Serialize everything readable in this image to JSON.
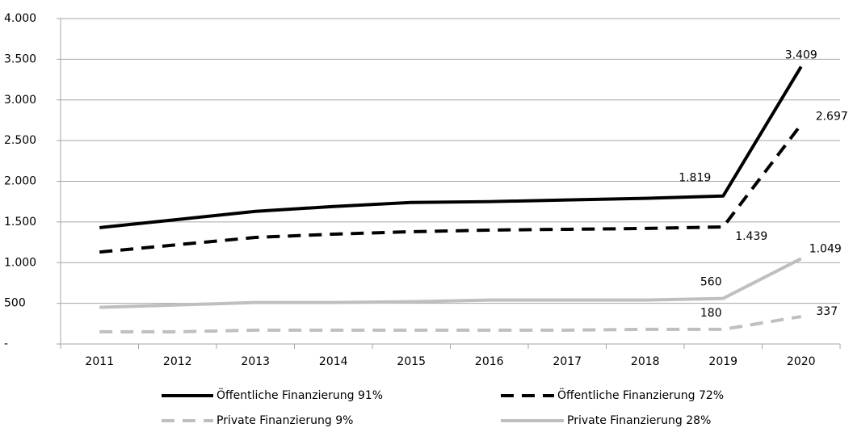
{
  "chart_data": {
    "type": "line",
    "categories": [
      "2011",
      "2012",
      "2013",
      "2014",
      "2015",
      "2016",
      "2017",
      "2018",
      "2019",
      "2020"
    ],
    "series": [
      {
        "name": "Öffentliche Finanzierung 91%",
        "color": "#000000",
        "dash": false,
        "values": [
          1430,
          1530,
          1630,
          1690,
          1740,
          1750,
          1770,
          1790,
          1819,
          3409
        ],
        "value_labels": [
          null,
          null,
          null,
          null,
          null,
          null,
          null,
          null,
          "1.819",
          "3.409"
        ]
      },
      {
        "name": "Öffentliche Finanzierung 72%",
        "color": "#000000",
        "dash": true,
        "values": [
          1130,
          1220,
          1310,
          1350,
          1380,
          1400,
          1410,
          1420,
          1439,
          2697
        ],
        "value_labels": [
          null,
          null,
          null,
          null,
          null,
          null,
          null,
          null,
          "1.439",
          "2.697"
        ]
      },
      {
        "name": "Private Finanzierung 9%",
        "color": "#bfbfbf",
        "dash": true,
        "values": [
          150,
          150,
          170,
          170,
          170,
          170,
          170,
          180,
          180,
          337
        ],
        "value_labels": [
          null,
          null,
          null,
          null,
          null,
          null,
          null,
          null,
          "180",
          "337"
        ]
      },
      {
        "name": "Private Finanzierung 28%",
        "color": "#bfbfbf",
        "dash": false,
        "values": [
          450,
          480,
          510,
          510,
          520,
          540,
          540,
          540,
          560,
          1049
        ],
        "value_labels": [
          null,
          null,
          null,
          null,
          null,
          null,
          null,
          null,
          "560",
          "1.049"
        ]
      }
    ],
    "ylim": [
      0,
      4000
    ],
    "yticks": [
      {
        "value": 0,
        "label": "-"
      },
      500,
      {
        "value": 1000,
        "label": "1.000"
      },
      {
        "value": 1500,
        "label": "1.500"
      },
      {
        "value": 2000,
        "label": "2.000"
      },
      {
        "value": 2500,
        "label": "2.500"
      },
      {
        "value": 3000,
        "label": "3.000"
      },
      {
        "value": 3500,
        "label": "3.500"
      },
      {
        "value": 4000,
        "label": "4.000"
      }
    ],
    "grid": true,
    "legend": "bottom"
  }
}
